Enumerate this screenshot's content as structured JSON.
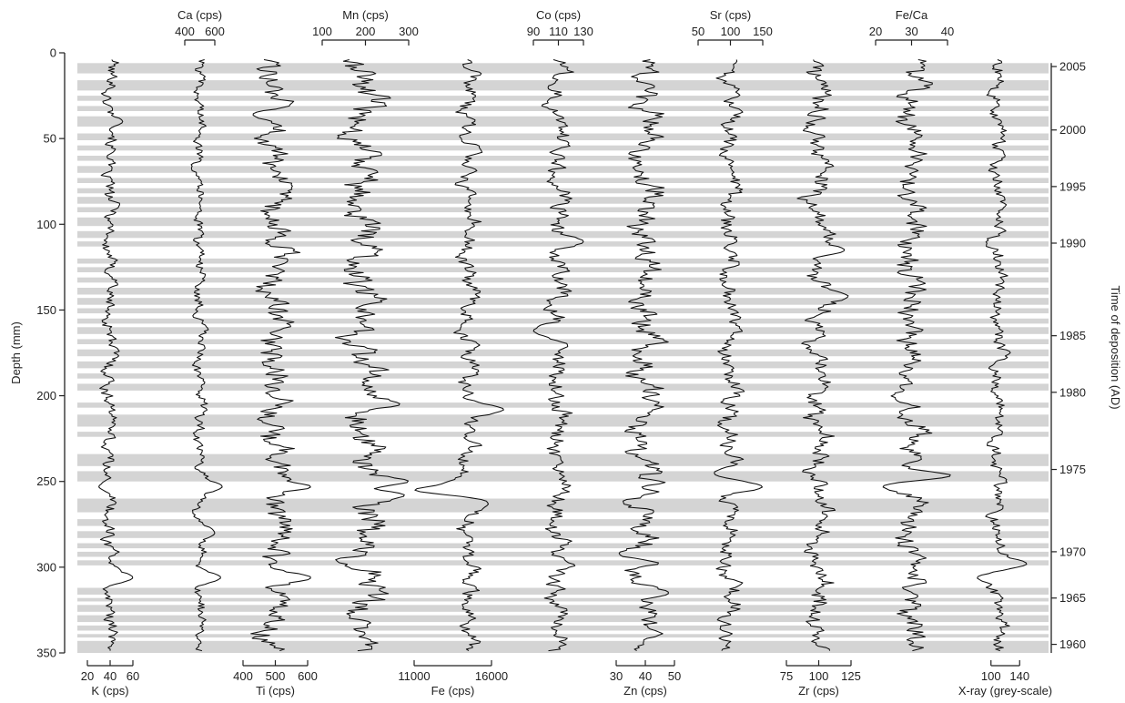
{
  "chart_data": {
    "type": "line",
    "orientation": "vertical-depth",
    "y_axis": {
      "label": "Depth (mm)",
      "lim": [
        0,
        350
      ],
      "ticks": [
        0,
        50,
        100,
        150,
        200,
        250,
        300,
        350
      ],
      "inverted": true
    },
    "right_axis": {
      "label": "Time of deposition (AD)",
      "ticks": [
        {
          "label": "2005",
          "depth": 8
        },
        {
          "label": "2000",
          "depth": 45
        },
        {
          "label": "1995",
          "depth": 78
        },
        {
          "label": "1990",
          "depth": 111
        },
        {
          "label": "1985",
          "depth": 165
        },
        {
          "label": "1980",
          "depth": 198
        },
        {
          "label": "1975",
          "depth": 243
        },
        {
          "label": "1970",
          "depth": 291
        },
        {
          "label": "1965",
          "depth": 318
        },
        {
          "label": "1960",
          "depth": 345
        }
      ]
    },
    "grey_bands_depth": [
      [
        6,
        12
      ],
      [
        16,
        22
      ],
      [
        25,
        28
      ],
      [
        31,
        34
      ],
      [
        37,
        43
      ],
      [
        47,
        51
      ],
      [
        54,
        57
      ],
      [
        60,
        63
      ],
      [
        66,
        70
      ],
      [
        73,
        76
      ],
      [
        79,
        82
      ],
      [
        84,
        88
      ],
      [
        90,
        93
      ],
      [
        96,
        101
      ],
      [
        104,
        108
      ],
      [
        110,
        113
      ],
      [
        120,
        123
      ],
      [
        125,
        128
      ],
      [
        131,
        134
      ],
      [
        137,
        141
      ],
      [
        143,
        147
      ],
      [
        149,
        152
      ],
      [
        155,
        158
      ],
      [
        160,
        164
      ],
      [
        167,
        170
      ],
      [
        173,
        177
      ],
      [
        180,
        184
      ],
      [
        187,
        190
      ],
      [
        193,
        197
      ],
      [
        204,
        207
      ],
      [
        211,
        218
      ],
      [
        221,
        224
      ],
      [
        234,
        241
      ],
      [
        244,
        250
      ],
      [
        260,
        268
      ],
      [
        272,
        276
      ],
      [
        279,
        283
      ],
      [
        286,
        289
      ],
      [
        291,
        294
      ],
      [
        296,
        299
      ],
      [
        312,
        316
      ],
      [
        318,
        320
      ],
      [
        322,
        326
      ],
      [
        328,
        332
      ],
      [
        334,
        337
      ],
      [
        339,
        341
      ],
      [
        343,
        350
      ]
    ],
    "series": [
      {
        "name": "K (cps)",
        "axis_position": "bottom",
        "lim": [
          20,
          60
        ],
        "ticks": [
          "20",
          "40",
          "60"
        ],
        "tick_values": [
          20,
          40,
          60
        ],
        "center": 40,
        "amplitude": 6,
        "excursions": [
          {
            "depth": 253,
            "value": 30
          },
          {
            "depth": 306,
            "value": 60
          },
          {
            "depth": 40,
            "value": 51
          }
        ]
      },
      {
        "name": "Ca (cps)",
        "axis_position": "top",
        "lim": [
          400,
          600
        ],
        "ticks": [
          "400",
          "600"
        ],
        "tick_values": [
          400,
          600
        ],
        "center": 500,
        "amplitude": 35,
        "excursions": [
          {
            "depth": 253,
            "value": 650
          },
          {
            "depth": 306,
            "value": 640
          },
          {
            "depth": 280,
            "value": 600
          }
        ]
      },
      {
        "name": "Ti (cps)",
        "axis_position": "bottom",
        "lim": [
          400,
          600
        ],
        "ticks": [
          "400",
          "500",
          "600"
        ],
        "tick_values": [
          400,
          500,
          600
        ],
        "center": 500,
        "amplitude": 45,
        "excursions": [
          {
            "depth": 253,
            "value": 610
          },
          {
            "depth": 306,
            "value": 610
          },
          {
            "depth": 36,
            "value": 430
          }
        ]
      },
      {
        "name": "Mn (cps)",
        "axis_position": "top",
        "lim": [
          100,
          300
        ],
        "ticks": [
          "100",
          "200",
          "300"
        ],
        "tick_values": [
          100,
          200,
          300
        ],
        "center": 195,
        "amplitude": 40,
        "excursions": [
          {
            "depth": 250,
            "value": 300
          },
          {
            "depth": 258,
            "value": 290
          },
          {
            "depth": 205,
            "value": 280
          }
        ]
      },
      {
        "name": "Fe (cps)",
        "axis_position": "bottom",
        "lim": [
          11000,
          16000
        ],
        "ticks": [
          "11000",
          "16000"
        ],
        "tick_values": [
          11000,
          16000
        ],
        "center": 14500,
        "amplitude": 550,
        "excursions": [
          {
            "depth": 255,
            "value": 11000
          },
          {
            "depth": 208,
            "value": 16800
          },
          {
            "depth": 263,
            "value": 15800
          }
        ]
      },
      {
        "name": "Co (cps)",
        "axis_position": "top",
        "lim": [
          90,
          130
        ],
        "ticks": [
          "90",
          "110",
          "130"
        ],
        "tick_values": [
          90,
          110,
          130
        ],
        "center": 110,
        "amplitude": 8,
        "excursions": [
          {
            "depth": 110,
            "value": 130
          },
          {
            "depth": 162,
            "value": 90
          }
        ]
      },
      {
        "name": "Zn (cps)",
        "axis_position": "bottom",
        "lim": [
          30,
          50
        ],
        "ticks": [
          "30",
          "40",
          "50"
        ],
        "tick_values": [
          30,
          40,
          50
        ],
        "center": 40,
        "amplitude": 5,
        "excursions": [
          {
            "depth": 292,
            "value": 31
          },
          {
            "depth": 315,
            "value": 48
          }
        ]
      },
      {
        "name": "Sr (cps)",
        "axis_position": "top",
        "lim": [
          50,
          150
        ],
        "ticks": [
          "50",
          "100",
          "150"
        ],
        "tick_values": [
          50,
          100,
          150
        ],
        "center": 100,
        "amplitude": 14,
        "excursions": [
          {
            "depth": 253,
            "value": 150
          },
          {
            "depth": 245,
            "value": 75
          }
        ]
      },
      {
        "name": "Zr (cps)",
        "axis_position": "bottom",
        "lim": [
          75,
          125
        ],
        "ticks": [
          "75",
          "100",
          "125"
        ],
        "tick_values": [
          75,
          100,
          125
        ],
        "center": 100,
        "amplitude": 9,
        "excursions": [
          {
            "depth": 142,
            "value": 123
          },
          {
            "depth": 115,
            "value": 120
          }
        ]
      },
      {
        "name": "Fe/Ca",
        "axis_position": "top",
        "lim": [
          20,
          40
        ],
        "ticks": [
          "20",
          "30",
          "40"
        ],
        "tick_values": [
          20,
          30,
          40
        ],
        "center": 30,
        "amplitude": 3.5,
        "excursions": [
          {
            "depth": 247,
            "value": 42
          },
          {
            "depth": 253,
            "value": 22
          }
        ]
      },
      {
        "name": "X-ray (grey-scale)",
        "axis_position": "bottom",
        "lim": [
          80,
          160
        ],
        "ticks": [
          "100",
          "140"
        ],
        "tick_values": [
          100,
          140
        ],
        "center": 110,
        "amplitude": 10,
        "excursions": [
          {
            "depth": 306,
            "value": 80
          },
          {
            "depth": 298,
            "value": 150
          }
        ]
      }
    ]
  }
}
